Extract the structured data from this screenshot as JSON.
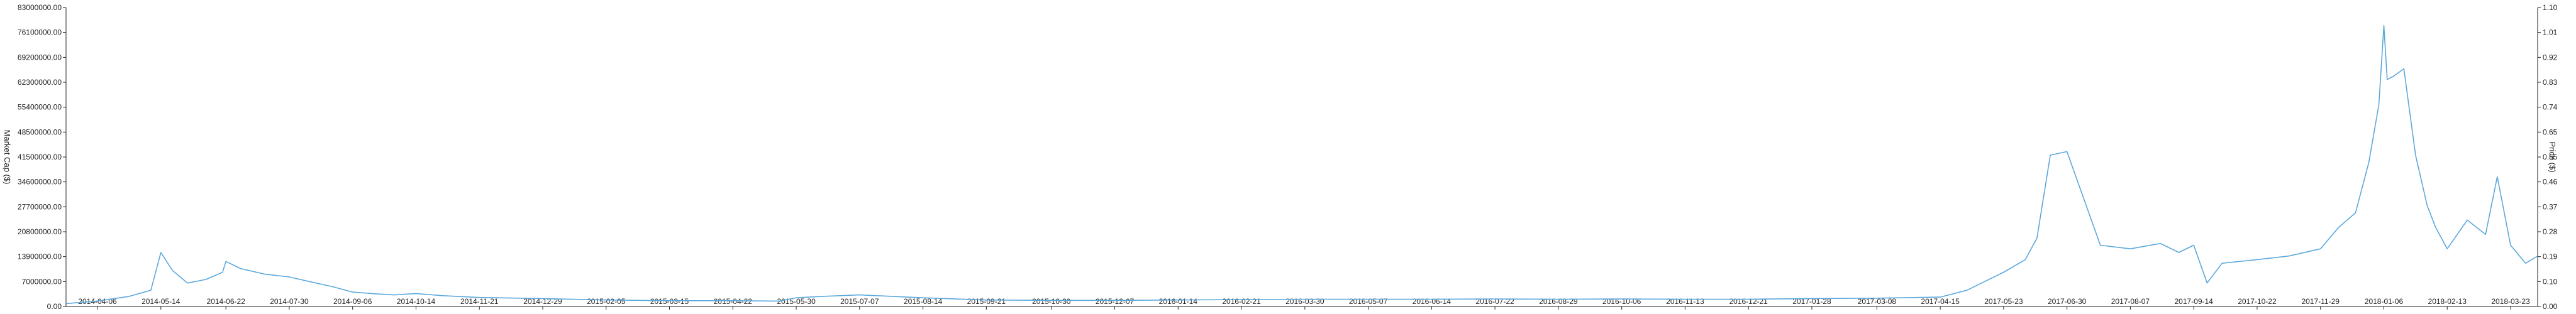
{
  "chart_data": {
    "type": "line",
    "title": "",
    "ylabel_left": "Market Cap ($)",
    "ylabel_right": "Price ($)",
    "x_ticks": [
      "2014-04-06",
      "2014-05-14",
      "2014-06-22",
      "2014-07-30",
      "2014-09-06",
      "2014-10-14",
      "2014-11-21",
      "2014-12-29",
      "2015-02-05",
      "2015-03-15",
      "2015-04-22",
      "2015-05-30",
      "2015-07-07",
      "2015-08-14",
      "2015-09-21",
      "2015-10-30",
      "2015-12-07",
      "2016-01-14",
      "2016-02-21",
      "2016-03-30",
      "2016-05-07",
      "2016-06-14",
      "2016-07-22",
      "2016-08-29",
      "2016-10-06",
      "2016-11-13",
      "2016-12-21",
      "2017-01-28",
      "2017-03-08",
      "2017-04-15",
      "2017-05-23",
      "2017-06-30",
      "2017-08-07",
      "2017-09-14",
      "2017-10-22",
      "2017-11-29",
      "2018-01-06",
      "2018-02-13",
      "2018-03-23"
    ],
    "y_left_ticks": [
      "0.00",
      "7000000.00",
      "13900000.00",
      "20800000.00",
      "27700000.00",
      "34600000.00",
      "41500000.00",
      "48500000.00",
      "55400000.00",
      "62300000.00",
      "69200000.00",
      "76100000.00",
      "83000000.00"
    ],
    "y_right_ticks": [
      "0.00",
      "0.10",
      "0.19",
      "0.28",
      "0.37",
      "0.46",
      "0.55",
      "0.65",
      "0.74",
      "0.83",
      "0.92",
      "1.01",
      "1.10"
    ],
    "y_left_range": [
      0,
      83000000
    ],
    "y_right_range": [
      0,
      1.1
    ],
    "line_color": "#5ba8dc",
    "grid": false,
    "series": [
      {
        "x": [
          "2014-03-15",
          "2014-04-06",
          "2014-04-25",
          "2014-05-08",
          "2014-05-14",
          "2014-05-21",
          "2014-05-30",
          "2014-06-10",
          "2014-06-20",
          "2014-06-22",
          "2014-07-01",
          "2014-07-15",
          "2014-07-30",
          "2014-08-15",
          "2014-08-25",
          "2014-09-06",
          "2014-09-20",
          "2014-10-01",
          "2014-10-14",
          "2014-10-30",
          "2014-11-21",
          "2014-12-29",
          "2015-02-05",
          "2015-03-15",
          "2015-04-22",
          "2015-05-20",
          "2015-05-30",
          "2015-06-15",
          "2015-07-07",
          "2015-08-14",
          "2015-09-21",
          "2015-10-30",
          "2015-12-07",
          "2016-01-14",
          "2016-02-21",
          "2016-03-30",
          "2016-05-07",
          "2016-06-14",
          "2016-07-22",
          "2016-08-29",
          "2016-10-06",
          "2016-11-13",
          "2016-12-21",
          "2017-01-28",
          "2017-03-08",
          "2017-04-15",
          "2017-05-01",
          "2017-05-23",
          "2017-06-05",
          "2017-06-12",
          "2017-06-20",
          "2017-06-30",
          "2017-07-10",
          "2017-07-20",
          "2017-08-07",
          "2017-08-25",
          "2017-09-05",
          "2017-09-14",
          "2017-09-22",
          "2017-10-01",
          "2017-10-22",
          "2017-11-10",
          "2017-11-29",
          "2017-12-10",
          "2017-12-20",
          "2017-12-28",
          "2018-01-03",
          "2018-01-06",
          "2018-01-08",
          "2018-01-12",
          "2018-01-18",
          "2018-01-25",
          "2018-02-01",
          "2018-02-06",
          "2018-02-13",
          "2018-02-25",
          "2018-03-08",
          "2018-03-15",
          "2018-03-23",
          "2018-04-01",
          "2018-04-10"
        ],
        "y": [
          800000,
          1500000,
          2800000,
          4500000,
          15000000,
          10000000,
          6500000,
          7500000,
          9500000,
          12500000,
          10500000,
          9000000,
          8200000,
          6500000,
          5500000,
          4000000,
          3500000,
          3200000,
          3600000,
          3000000,
          2500000,
          2200000,
          1800000,
          1600000,
          1600000,
          1500000,
          2400000,
          2800000,
          3200000,
          2400000,
          1800000,
          1700000,
          1700000,
          1800000,
          1900000,
          2000000,
          2000000,
          2000000,
          2100000,
          2000000,
          2100000,
          2000000,
          2000000,
          2200000,
          2300000,
          2600000,
          4500000,
          9500000,
          13000000,
          19000000,
          42000000,
          43000000,
          30000000,
          17000000,
          16000000,
          17500000,
          15000000,
          17000000,
          6500000,
          12000000,
          13000000,
          14000000,
          16000000,
          22000000,
          26000000,
          40000000,
          56000000,
          78000000,
          63000000,
          64000000,
          66000000,
          42000000,
          28000000,
          22000000,
          16000000,
          24000000,
          20000000,
          36000000,
          17000000,
          12000000,
          14000000
        ]
      }
    ]
  }
}
